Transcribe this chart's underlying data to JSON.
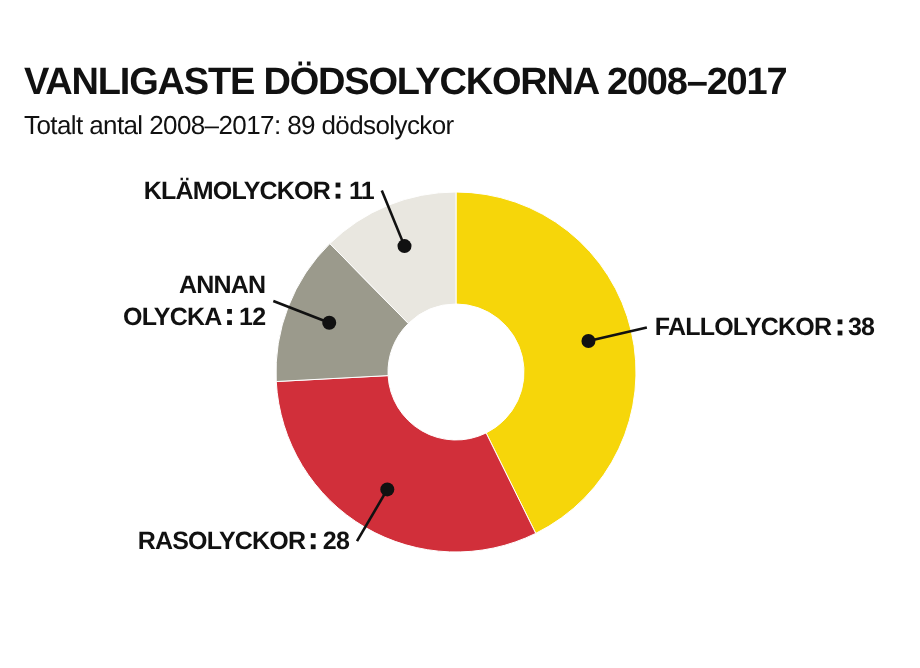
{
  "chart_data": {
    "type": "donut",
    "title": "VANLIGASTE DÖDSOLYCKORNA 2008–2017",
    "subtitle": "Totalt antal 2008–2017: 89 dödsolyckor",
    "categories": [
      "FALLOLYCKOR",
      "RASOLYCKOR",
      "ANNAN OLYCKA",
      "KLÄMOLYCKOR"
    ],
    "values": [
      38,
      28,
      12,
      11
    ],
    "colors": [
      "#f6d60a",
      "#d12f3a",
      "#9b9a8c",
      "#e9e7e0"
    ],
    "data_labels": true
  }
}
